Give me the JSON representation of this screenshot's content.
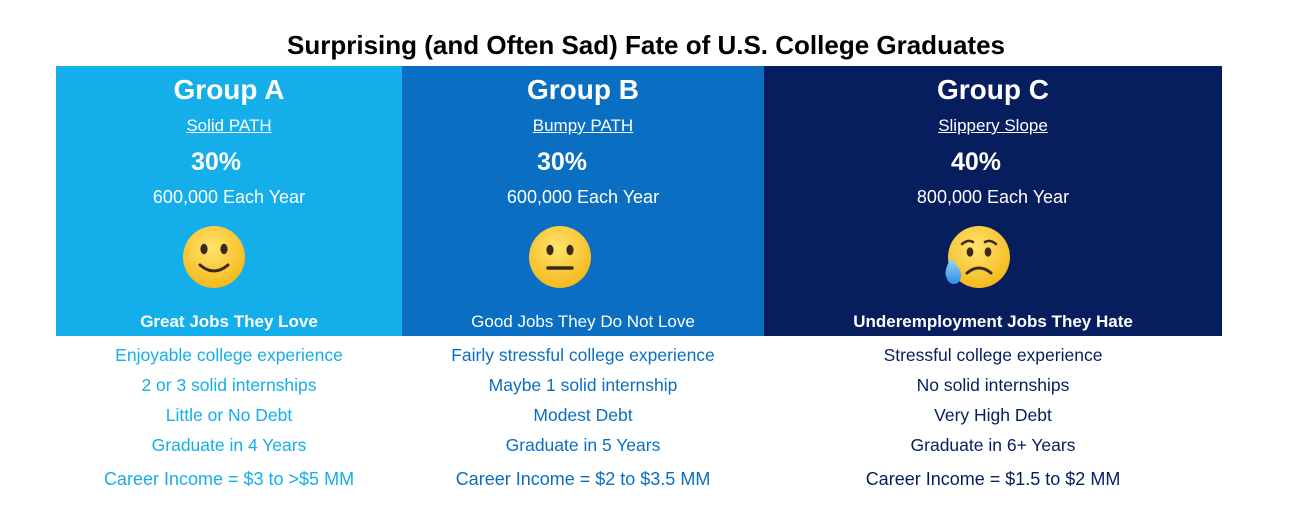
{
  "title": "Surprising (and Often Sad) Fate of U.S. College Graduates",
  "colors": {
    "group_a": "#14aeea",
    "group_b": "#0a6fc2",
    "group_c": "#071e5e",
    "emoji_face": "#fbd33d"
  },
  "groups": [
    {
      "name": "Group A",
      "path": "Solid PATH",
      "percent": "30%",
      "per_year": "600,000 Each Year",
      "emoji": "slightly-smiling-face-icon",
      "job_line": "Great Jobs They Love",
      "bullets": [
        "Enjoyable college experience",
        "2 or 3 solid internships",
        "Little or No Debt",
        "Graduate in 4 Years"
      ],
      "income": "Career Income = $3 to >$5 MM"
    },
    {
      "name": "Group B",
      "path": "Bumpy PATH",
      "percent": "30%",
      "per_year": "600,000 Each Year",
      "emoji": "neutral-face-icon",
      "job_line": "Good Jobs They Do Not Love",
      "bullets": [
        "Fairly stressful college experience",
        "Maybe 1 solid internship",
        "Modest Debt",
        "Graduate in 5 Years"
      ],
      "income": "Career Income = $2 to $3.5 MM"
    },
    {
      "name": "Group C",
      "path": "Slippery Slope",
      "percent": "40%",
      "per_year": "800,000 Each Year",
      "emoji": "sad-but-relieved-face-icon",
      "job_line": "Underemployment Jobs They Hate",
      "bullets": [
        "Stressful college experience",
        "No solid internships",
        "Very High Debt",
        "Graduate in 6+ Years"
      ],
      "income": "Career Income = $1.5 to $2 MM"
    }
  ]
}
